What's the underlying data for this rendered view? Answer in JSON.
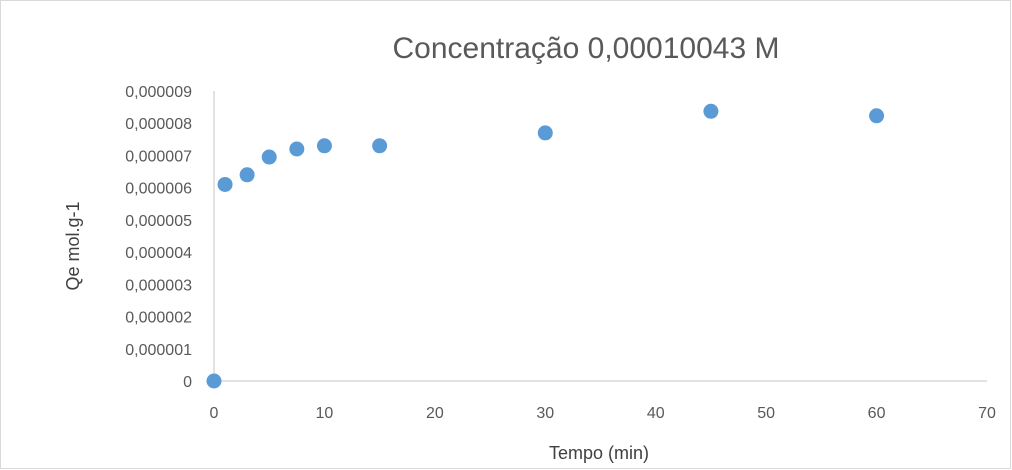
{
  "chart_data": {
    "type": "scatter",
    "title": "Concentração 0,00010043 M",
    "xlabel": "Tempo (min)",
    "ylabel": "Qe mol.g-1",
    "xlim": [
      0,
      70
    ],
    "ylim": [
      0,
      9e-06
    ],
    "x_ticks": [
      0,
      10,
      20,
      30,
      40,
      50,
      60,
      70
    ],
    "x_tick_labels": [
      "0",
      "10",
      "20",
      "30",
      "40",
      "50",
      "60",
      "70"
    ],
    "y_ticks": [
      0,
      1e-06,
      2e-06,
      3e-06,
      4e-06,
      5e-06,
      6e-06,
      7e-06,
      8e-06,
      9e-06
    ],
    "y_tick_labels": [
      "0",
      "0,000001",
      "0,000002",
      "0,000003",
      "0,000004",
      "0,000005",
      "0,000006",
      "0,000007",
      "0,000008",
      "0,000009"
    ],
    "grid": false,
    "legend": false,
    "marker_color": "#5b9bd5",
    "series": [
      {
        "x": [
          0,
          1,
          3,
          5,
          7.5,
          10,
          15,
          30,
          45,
          60
        ],
        "y": [
          0,
          6.1e-06,
          6.4e-06,
          6.95e-06,
          7.2e-06,
          7.3e-06,
          7.3e-06,
          7.7e-06,
          8.37e-06,
          8.23e-06
        ]
      }
    ]
  }
}
